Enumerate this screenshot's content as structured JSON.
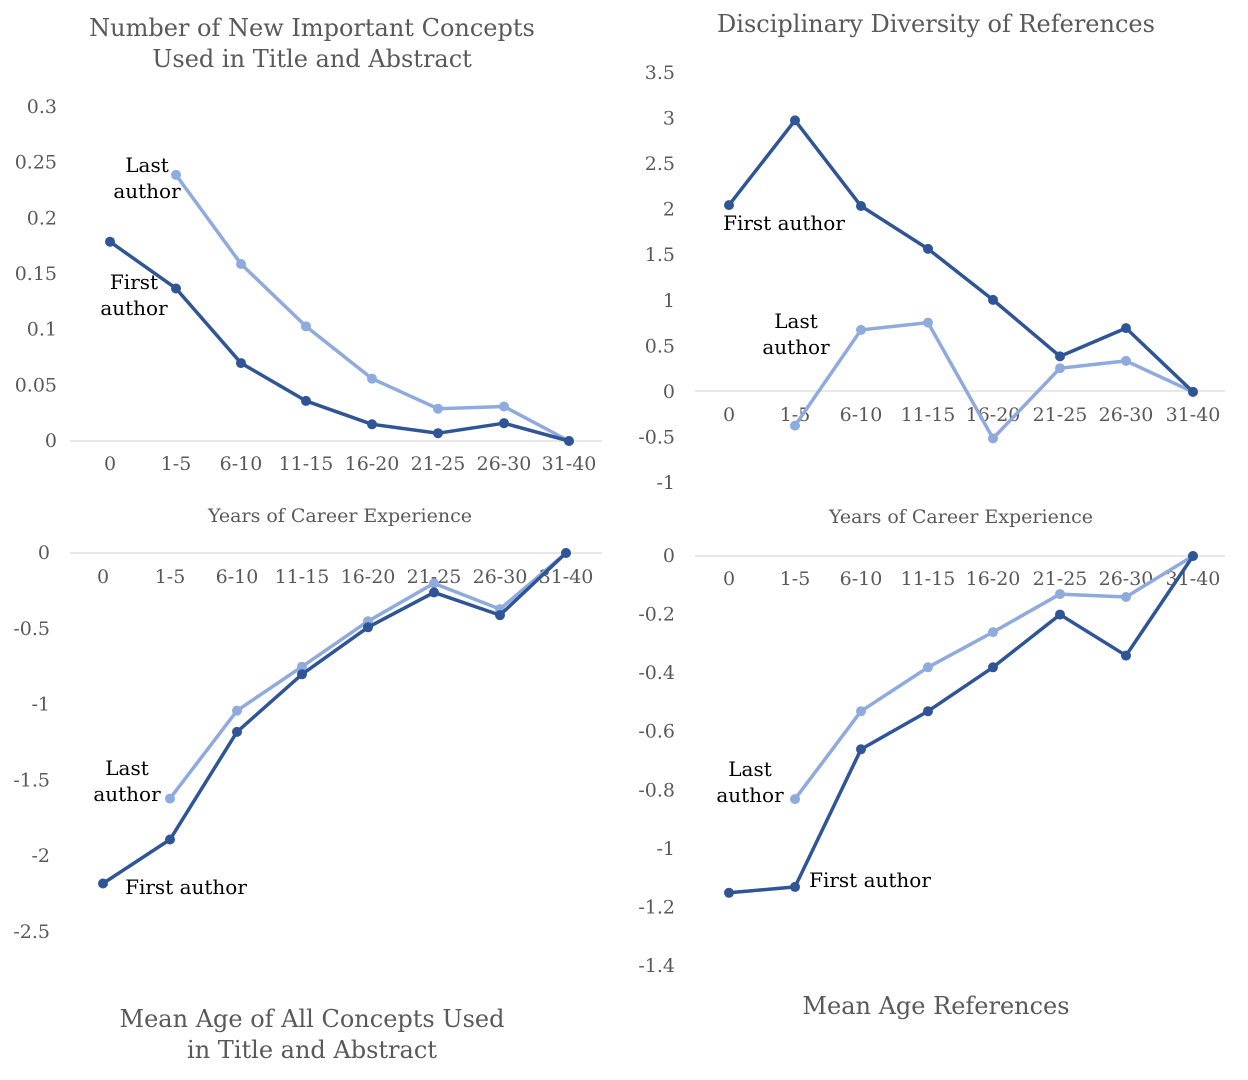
{
  "chart_data": [
    {
      "type": "line",
      "title": [
        "Number of New Important Concepts",
        "Used in Title and Abstract"
      ],
      "xlabel": "Years of Career Experience",
      "ylabel": "",
      "categories": [
        "0",
        "1-5",
        "6-10",
        "11-15",
        "16-20",
        "21-25",
        "26-30",
        "31-40"
      ],
      "ylim": [
        0,
        0.3
      ],
      "yticks": [
        "0.3",
        "0.25",
        "0.2",
        "0.15",
        "0.1",
        "0.05",
        "0"
      ],
      "series": [
        {
          "name": "First author",
          "label_lines": [
            "First",
            "author"
          ],
          "color": "#2f5597",
          "values": [
            0.179,
            0.137,
            0.07,
            0.036,
            0.015,
            0.007,
            0.016,
            0.0
          ]
        },
        {
          "name": "Last author",
          "label_lines": [
            "Last",
            "author"
          ],
          "color": "#8faadc",
          "values": [
            null,
            0.239,
            0.159,
            0.103,
            0.056,
            0.029,
            0.031,
            0.0
          ]
        }
      ],
      "grid": false,
      "legend": "inline annotations"
    },
    {
      "type": "line",
      "title": [
        "Disciplinary Diversity of References"
      ],
      "xlabel": "Years of Career Experience",
      "ylabel": "",
      "categories": [
        "0",
        "1-5",
        "6-10",
        "11-15",
        "16-20",
        "21-25",
        "26-30",
        "31-40"
      ],
      "ylim": [
        -1,
        3.5
      ],
      "yticks": [
        "3.5",
        "3",
        "2.5",
        "2",
        "1.5",
        "1",
        "0.5",
        "0",
        "-0.5",
        "-1"
      ],
      "series": [
        {
          "name": "First author",
          "label_lines": [
            "First author"
          ],
          "color": "#2f5597",
          "values": [
            2.05,
            2.98,
            2.04,
            1.57,
            1.01,
            0.39,
            0.7,
            0.0
          ]
        },
        {
          "name": "Last author",
          "label_lines": [
            "Last",
            "author"
          ],
          "color": "#8faadc",
          "values": [
            null,
            -0.37,
            0.68,
            0.76,
            -0.51,
            0.26,
            0.34,
            0.0
          ]
        }
      ],
      "grid": false,
      "legend": "inline annotations"
    },
    {
      "type": "line",
      "title": [
        "Mean Age of All Concepts Used",
        "in Title and Abstract"
      ],
      "xlabel": "",
      "ylabel": "",
      "categories": [
        "0",
        "1-5",
        "6-10",
        "11-15",
        "16-20",
        "21-25",
        "26-30",
        "31-40"
      ],
      "ylim": [
        -2.5,
        0
      ],
      "yticks": [
        "0",
        "-0.5",
        "-1",
        "-1.5",
        "-2",
        "-2.5"
      ],
      "series": [
        {
          "name": "First author",
          "label_lines": [
            "First author"
          ],
          "color": "#2f5597",
          "values": [
            -2.18,
            -1.89,
            -1.18,
            -0.8,
            -0.49,
            -0.26,
            -0.41,
            0.0
          ]
        },
        {
          "name": "Last author",
          "label_lines": [
            "Last",
            "author"
          ],
          "color": "#8faadc",
          "values": [
            null,
            -1.62,
            -1.04,
            -0.75,
            -0.45,
            -0.2,
            -0.37,
            0.0
          ]
        }
      ],
      "grid": false,
      "legend": "inline annotations"
    },
    {
      "type": "line",
      "title": [
        "Mean Age References"
      ],
      "xlabel": "",
      "ylabel": "",
      "categories": [
        "0",
        "1-5",
        "6-10",
        "11-15",
        "16-20",
        "21-25",
        "26-30",
        "31-40"
      ],
      "ylim": [
        -1.4,
        0
      ],
      "yticks": [
        "0",
        "-0.2",
        "-0.4",
        "-0.6",
        "-0.8",
        "-1",
        "-1.2",
        "-1.4"
      ],
      "series": [
        {
          "name": "First author",
          "label_lines": [
            "First author"
          ],
          "color": "#2f5597",
          "values": [
            -1.15,
            -1.13,
            -0.66,
            -0.53,
            -0.38,
            -0.2,
            -0.34,
            0.0
          ]
        },
        {
          "name": "Last author",
          "label_lines": [
            "Last",
            "author"
          ],
          "color": "#8faadc",
          "values": [
            null,
            -0.83,
            -0.53,
            -0.38,
            -0.26,
            -0.13,
            -0.14,
            0.0
          ]
        }
      ],
      "grid": false,
      "legend": "inline annotations"
    }
  ]
}
